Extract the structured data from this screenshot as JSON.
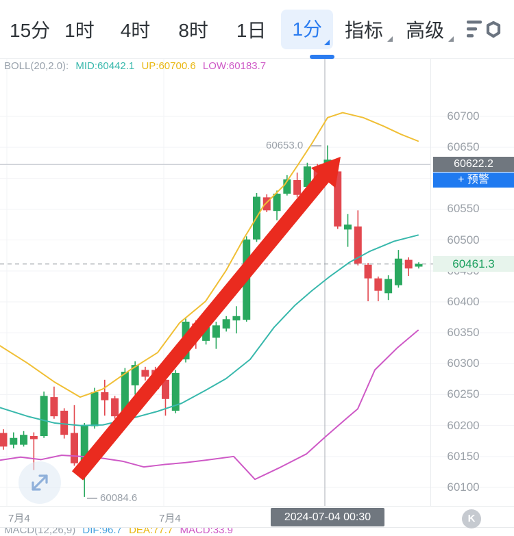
{
  "toolbar": {
    "tabs": [
      {
        "id": "15m",
        "label": "15分",
        "active": false
      },
      {
        "id": "1h",
        "label": "1时",
        "active": false
      },
      {
        "id": "4h",
        "label": "4时",
        "active": false
      },
      {
        "id": "8h",
        "label": "8时",
        "active": false
      },
      {
        "id": "1d",
        "label": "1日",
        "active": false
      },
      {
        "id": "1m",
        "label": "1分",
        "active": true
      }
    ],
    "menus": [
      {
        "id": "indicator",
        "label": "指标"
      },
      {
        "id": "advanced",
        "label": "高级"
      }
    ],
    "settings_icon": "chart-settings-icon"
  },
  "boll": {
    "label": "BOLL(20,2.0):",
    "mid": "MID:60442.1",
    "up": "UP:60700.6",
    "low": "LOW:60183.7"
  },
  "macd": {
    "label": "MACD(12,26,9)",
    "dif": "DIF:96.7",
    "dea": "DEA:77.7",
    "macd": "MACD:33.9"
  },
  "axis": {
    "labels": [
      "60700",
      "60650",
      "60550",
      "60500",
      "60450",
      "60400",
      "60350",
      "60300",
      "60250",
      "60200",
      "60150",
      "60100"
    ]
  },
  "badges": {
    "alert_price": "60622.2",
    "alert_button": "+ 预警",
    "current_price": "60461.3"
  },
  "chart_labels": {
    "high": "60653.0",
    "low": "60084.6"
  },
  "xaxis": {
    "left": "7月4",
    "mid": "7月4",
    "timestamp": "2024-07-04 00:30",
    "k_button": "K"
  },
  "colors": {
    "up": "#2aa85f",
    "down": "#e2474e",
    "boll_upper": "#f0bf35",
    "boll_mid": "#38b8ac",
    "boll_lower": "#ce59c6",
    "accent_blue": "#2b7cf0",
    "alert_blue": "#1f7af0",
    "badge_dark": "#70777f",
    "current_green": "#1ca05f",
    "arrow_red": "#ea2b1f",
    "axis_text": "#9ba1a8",
    "grid": "#f2f3f6",
    "alert_line": "#c6cad0",
    "crosshair": "#a9aeb5"
  },
  "chart_data": {
    "type": "candlestick",
    "interval": "1分",
    "ylim": [
      60050,
      60750
    ],
    "y_ticks": [
      60100,
      60150,
      60200,
      60250,
      60300,
      60350,
      60400,
      60450,
      60500,
      60550,
      60600,
      60650,
      60700
    ],
    "current_price": 60461.3,
    "alert_price": 60622.2,
    "high_annotation": 60653.0,
    "low_annotation": 60084.6,
    "crosshair_time": "2024-07-04 00:30",
    "candles_ohlc": [
      [
        60188,
        60194,
        60161,
        60166
      ],
      [
        60169,
        60189,
        60163,
        60180
      ],
      [
        60169,
        60191,
        60166,
        60185
      ],
      [
        60183,
        60189,
        60128,
        60178
      ],
      [
        60183,
        60255,
        60180,
        60248
      ],
      [
        60246,
        60263,
        60211,
        60215
      ],
      [
        60224,
        60228,
        60179,
        60185
      ],
      [
        60188,
        60233,
        60135,
        60139
      ],
      [
        60139,
        60204,
        60084.6,
        60200
      ],
      [
        60199,
        60261,
        60195,
        60254
      ],
      [
        60254,
        60274,
        60216,
        60241
      ],
      [
        60244,
        60248,
        60211,
        60215
      ],
      [
        60219,
        60293,
        60215,
        60287
      ],
      [
        60265,
        60304,
        60250,
        60298
      ],
      [
        60290,
        60295,
        60273,
        60279
      ],
      [
        60290,
        60295,
        60255,
        60259
      ],
      [
        60274,
        60279,
        60216,
        60243
      ],
      [
        60224,
        60290,
        60220,
        60285
      ],
      [
        60307,
        60373,
        60302,
        60368
      ],
      [
        60365,
        60370,
        60324,
        60346
      ],
      [
        60337,
        60365,
        60331,
        60359
      ],
      [
        60342,
        60368,
        60324,
        60362
      ],
      [
        60357,
        60377,
        60352,
        60372
      ],
      [
        60370,
        60393,
        60349,
        60377
      ],
      [
        60371,
        60506,
        60368,
        60501
      ],
      [
        60501,
        60576,
        60497,
        60570
      ],
      [
        60569,
        60574,
        60545,
        60548
      ],
      [
        60547,
        60580,
        60532,
        60575
      ],
      [
        60575,
        60605,
        60572,
        60598
      ],
      [
        60597,
        60609,
        60569,
        60573
      ],
      [
        60586,
        60625,
        60583,
        60619
      ],
      [
        60617,
        60623,
        60594,
        60598
      ],
      [
        60611,
        60653,
        60607,
        60630
      ],
      [
        60611,
        60617,
        60518,
        60522
      ],
      [
        60517,
        60542,
        60489,
        60525
      ],
      [
        60522,
        60548,
        60459,
        60462
      ],
      [
        60460,
        60463,
        60401,
        60438
      ],
      [
        60438,
        60441,
        60401,
        60418
      ],
      [
        60414,
        60443,
        60403,
        60437
      ],
      [
        60427,
        60484,
        60423,
        60470
      ],
      [
        60468,
        60472,
        60442,
        60454
      ],
      [
        60457,
        60464,
        60454,
        60461.3
      ]
    ],
    "overlays": {
      "boll_upper": [
        [
          0,
          60329
        ],
        [
          40,
          60301
        ],
        [
          80,
          60270
        ],
        [
          117,
          60246
        ],
        [
          150,
          60259
        ],
        [
          190,
          60290
        ],
        [
          230,
          60318
        ],
        [
          262,
          60366
        ],
        [
          300,
          60401
        ],
        [
          330,
          60451
        ],
        [
          355,
          60501
        ],
        [
          385,
          60556
        ],
        [
          415,
          60589
        ],
        [
          435,
          60622
        ],
        [
          455,
          60656
        ],
        [
          478,
          60698
        ],
        [
          500,
          60706
        ],
        [
          530,
          60698
        ],
        [
          560,
          60684
        ],
        [
          585,
          60671
        ],
        [
          610,
          60660
        ]
      ],
      "boll_mid": [
        [
          0,
          60229
        ],
        [
          40,
          60215
        ],
        [
          80,
          60204
        ],
        [
          117,
          60200
        ],
        [
          150,
          60201
        ],
        [
          190,
          60211
        ],
        [
          230,
          60223
        ],
        [
          265,
          60236
        ],
        [
          300,
          60257
        ],
        [
          330,
          60276
        ],
        [
          365,
          60307
        ],
        [
          400,
          60359
        ],
        [
          430,
          60394
        ],
        [
          455,
          60418
        ],
        [
          480,
          60440
        ],
        [
          510,
          60464
        ],
        [
          540,
          60482
        ],
        [
          575,
          60498
        ],
        [
          610,
          60508
        ]
      ],
      "boll_lower": [
        [
          0,
          60144
        ],
        [
          30,
          60149
        ],
        [
          60,
          60145
        ],
        [
          90,
          60152
        ],
        [
          120,
          60150
        ],
        [
          150,
          60147
        ],
        [
          180,
          60142
        ],
        [
          210,
          60133
        ],
        [
          240,
          60137
        ],
        [
          270,
          60140
        ],
        [
          300,
          60144
        ],
        [
          341,
          60150
        ],
        [
          372,
          60113
        ],
        [
          410,
          60133
        ],
        [
          447,
          60154
        ],
        [
          475,
          60182
        ],
        [
          505,
          60211
        ],
        [
          522,
          60227
        ],
        [
          547,
          60290
        ],
        [
          580,
          60326
        ],
        [
          610,
          60354
        ]
      ]
    },
    "annotations": {
      "trend_arrow": {
        "x1": 113,
        "y1": 695,
        "x2": 497,
        "y2": 229
      }
    }
  }
}
